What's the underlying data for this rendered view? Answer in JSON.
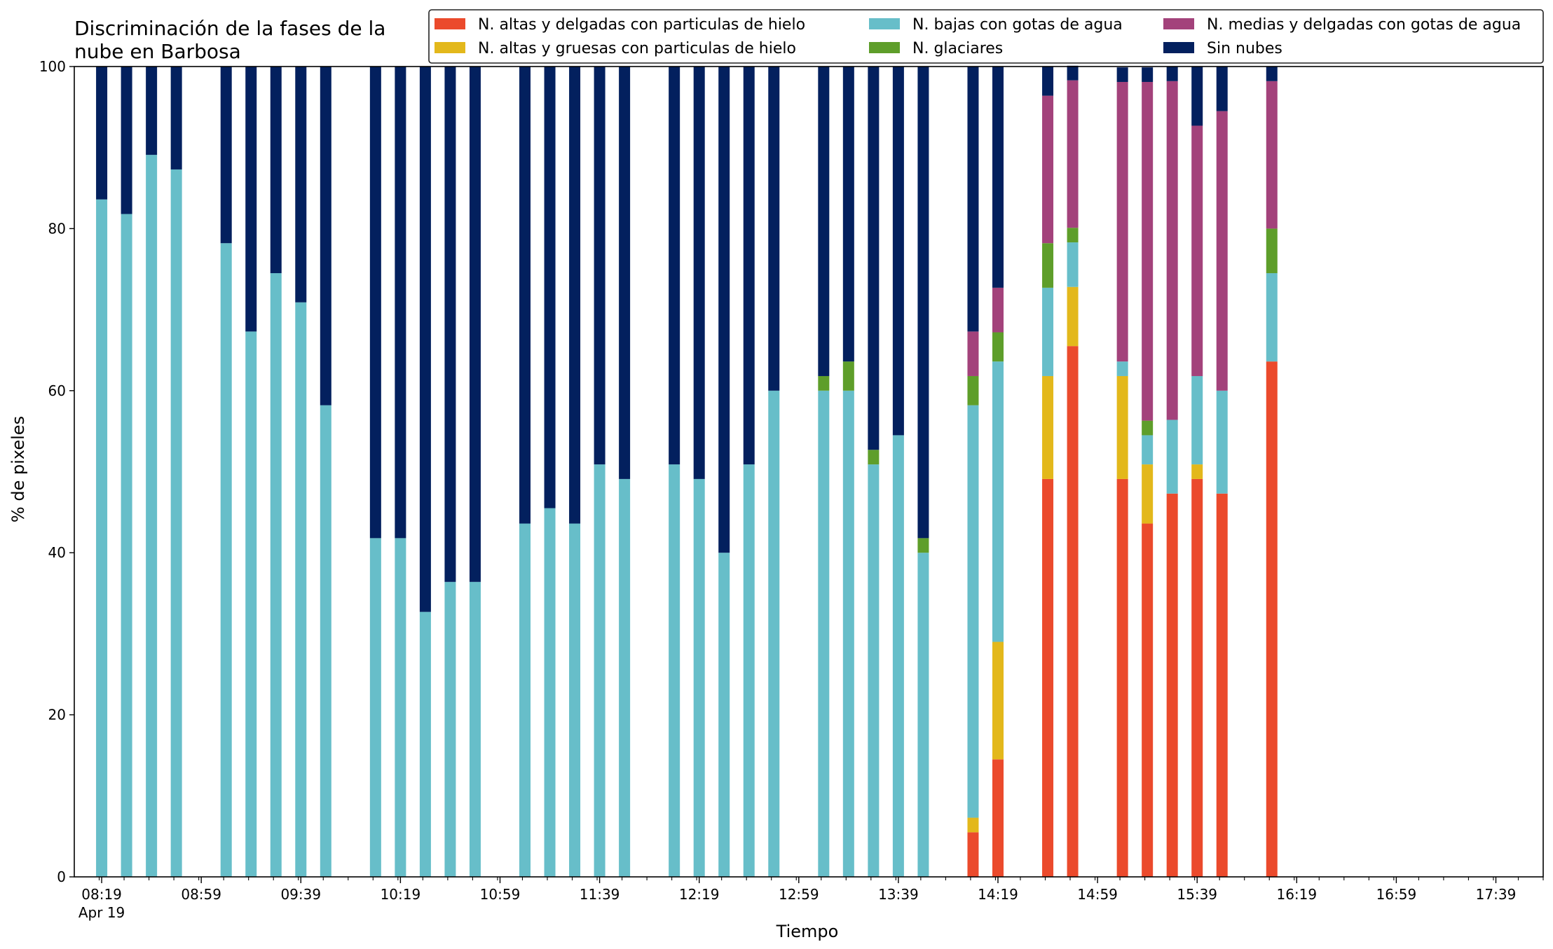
{
  "chart_data": {
    "type": "bar",
    "stacked": true,
    "title_lines": [
      "Discriminación de la fases de la",
      "nube en Barbosa"
    ],
    "xlabel": "Tiempo",
    "ylabel": "% de pixeles",
    "ylim": [
      0,
      100
    ],
    "yticks": [
      0,
      20,
      40,
      60,
      80,
      100
    ],
    "x_range_minutes": [
      8,
      598
    ],
    "x_major_step_minutes": 40,
    "x_minor_step_minutes": 10,
    "x_major_labels": [
      "08:19",
      "08:59",
      "09:39",
      "10:19",
      "10:59",
      "11:39",
      "12:19",
      "12:59",
      "13:39",
      "14:19",
      "14:59",
      "15:39",
      "16:19",
      "16:59",
      "17:39"
    ],
    "x_date_label": "Apr 19",
    "legend_placement": "top-right",
    "legend_columns": 3,
    "x": [
      "08:19",
      "08:29",
      "08:39",
      "08:49",
      "09:09",
      "09:19",
      "09:29",
      "09:39",
      "09:49",
      "10:09",
      "10:19",
      "10:29",
      "10:39",
      "10:49",
      "11:09",
      "11:19",
      "11:29",
      "11:39",
      "11:49",
      "12:09",
      "12:19",
      "12:29",
      "12:39",
      "12:49",
      "13:09",
      "13:19",
      "13:29",
      "13:39",
      "13:49",
      "14:09",
      "14:19",
      "14:39",
      "14:49",
      "15:09",
      "15:19",
      "15:29",
      "15:39",
      "15:49",
      "16:09"
    ],
    "series": [
      {
        "name": "N. altas y delgadas con particulas de hielo",
        "color": "#eb4a2c",
        "values": [
          0,
          0,
          0,
          0,
          0,
          0,
          0,
          0,
          0,
          0,
          0,
          0,
          0,
          0,
          0,
          0,
          0,
          0,
          0,
          0,
          0,
          0,
          0,
          0,
          0,
          0,
          0,
          0,
          0,
          5.5,
          14.5,
          49.1,
          65.5,
          49.1,
          43.6,
          47.3,
          49.1,
          47.3,
          63.6
        ]
      },
      {
        "name": "N. altas y gruesas con particulas de hielo",
        "color": "#e3b81b",
        "values": [
          0,
          0,
          0,
          0,
          0,
          0,
          0,
          0,
          0,
          0,
          0,
          0,
          0,
          0,
          0,
          0,
          0,
          0,
          0,
          0,
          0,
          0,
          0,
          0,
          0,
          0,
          0,
          0,
          0,
          1.8,
          14.5,
          12.7,
          7.3,
          12.7,
          7.3,
          0,
          1.8,
          0,
          0
        ]
      },
      {
        "name": "N. bajas con gotas de agua",
        "color": "#67bec9",
        "values": [
          83.6,
          81.8,
          89.1,
          87.3,
          78.2,
          67.3,
          74.5,
          70.9,
          58.2,
          41.8,
          41.8,
          32.7,
          36.4,
          36.4,
          43.6,
          45.5,
          43.6,
          50.9,
          49.1,
          50.9,
          49.1,
          40,
          50.9,
          60,
          60,
          60,
          50.9,
          54.5,
          40,
          50.9,
          34.6,
          10.9,
          5.5,
          1.8,
          3.6,
          9.1,
          10.9,
          12.7,
          10.9
        ]
      },
      {
        "name": "N. glaciares",
        "color": "#5e9e2a",
        "values": [
          0,
          0,
          0,
          0,
          0,
          0,
          0,
          0,
          0,
          0,
          0,
          0,
          0,
          0,
          0,
          0,
          0,
          0,
          0,
          0,
          0,
          0,
          0,
          0,
          1.8,
          3.6,
          1.8,
          0,
          1.8,
          3.6,
          3.6,
          5.5,
          1.8,
          0,
          1.8,
          0,
          0,
          0,
          5.5
        ]
      },
      {
        "name": "N. medias y delgadas con gotas de agua",
        "color": "#a3427b",
        "values": [
          0,
          0,
          0,
          0,
          0,
          0,
          0,
          0,
          0,
          0,
          0,
          0,
          0,
          0,
          0,
          0,
          0,
          0,
          0,
          0,
          0,
          0,
          0,
          0,
          0,
          0,
          0,
          0,
          0,
          5.5,
          5.5,
          18.2,
          18.2,
          34.5,
          41.8,
          41.8,
          30.9,
          34.5,
          18.2
        ]
      },
      {
        "name": "Sin nubes",
        "color": "#03205e",
        "values": [
          16.4,
          18.2,
          10.9,
          12.7,
          21.8,
          32.7,
          25.5,
          29.1,
          41.8,
          58.2,
          58.2,
          67.3,
          63.6,
          63.6,
          56.4,
          54.5,
          56.4,
          49.1,
          50.9,
          49.1,
          50.9,
          60,
          49.1,
          40,
          38.2,
          36.4,
          47.3,
          45.5,
          58.2,
          32.7,
          27.3,
          3.6,
          1.8,
          1.8,
          1.8,
          1.8,
          7.3,
          5.5,
          1.8
        ]
      }
    ]
  }
}
